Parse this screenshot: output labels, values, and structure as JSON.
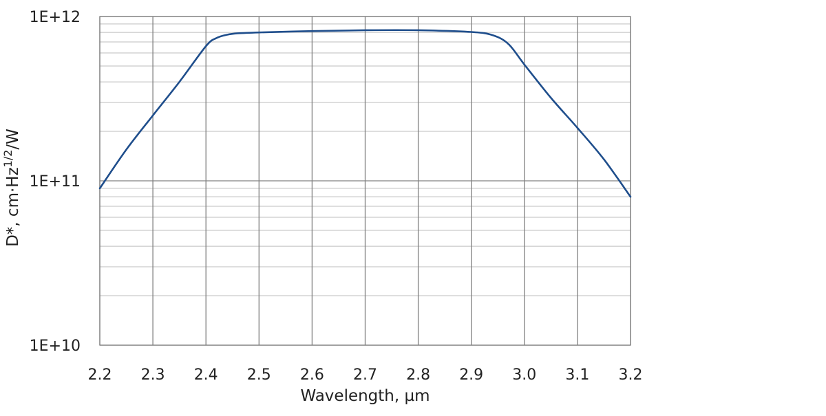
{
  "chart_data": {
    "type": "line",
    "title": "",
    "xlabel": "Wavelength, µm",
    "ylabel": {
      "main": "D*, cm·Hz",
      "superscript": "1/2",
      "suffix": "/W"
    },
    "x_scale": "linear",
    "y_scale": "log",
    "xlim": [
      2.2,
      3.2
    ],
    "ylim": [
      10000000000.0,
      1000000000000.0
    ],
    "x_ticks": [
      "2.2",
      "2.3",
      "2.4",
      "2.5",
      "2.6",
      "2.7",
      "2.8",
      "2.9",
      "3.0",
      "3.1",
      "3.2"
    ],
    "x_tick_values": [
      2.2,
      2.3,
      2.4,
      2.5,
      2.6,
      2.7,
      2.8,
      2.9,
      3.0,
      3.1,
      3.2
    ],
    "y_ticks": [
      "1E+10",
      "1E+11",
      "1E+12"
    ],
    "y_tick_values": [
      10000000000.0,
      100000000000.0,
      1000000000000.0
    ],
    "grid": true,
    "legend": "none",
    "colors": {
      "line": "#1f4e8c",
      "grid_major": "#808080",
      "grid_minor": "#bdbdbd",
      "axis": "#808080"
    },
    "series": [
      {
        "x": [
          2.2,
          2.25,
          2.3,
          2.35,
          2.4,
          2.42,
          2.44,
          2.46,
          2.5,
          2.6,
          2.7,
          2.8,
          2.9,
          2.94,
          2.97,
          3.0,
          3.05,
          3.1,
          3.15,
          3.2
        ],
        "y": [
          90000000000.0,
          155000000000.0,
          250000000000.0,
          400000000000.0,
          660000000000.0,
          740000000000.0,
          775000000000.0,
          790000000000.0,
          800000000000.0,
          815000000000.0,
          825000000000.0,
          825000000000.0,
          805000000000.0,
          770000000000.0,
          680000000000.0,
          510000000000.0,
          320000000000.0,
          210000000000.0,
          135000000000.0,
          80000000000.0
        ]
      }
    ]
  }
}
